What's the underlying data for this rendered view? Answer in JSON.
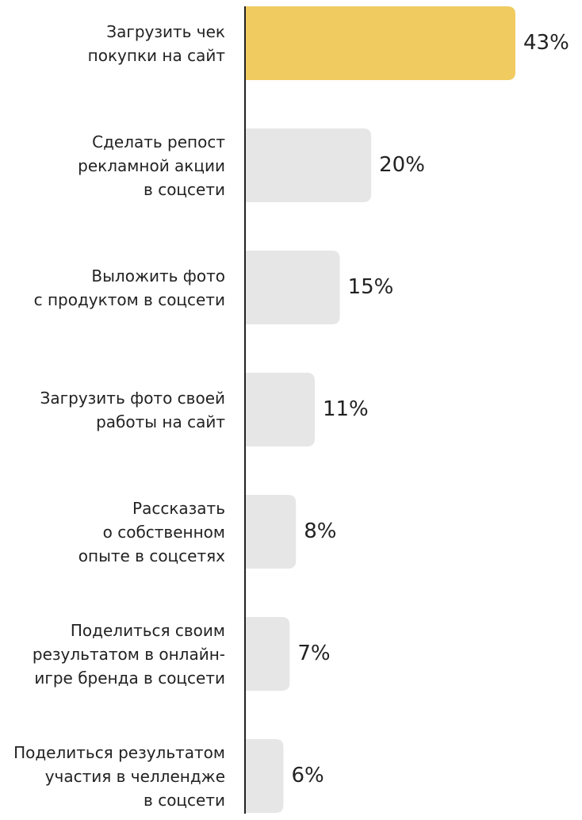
{
  "chart_data": {
    "type": "bar",
    "orientation": "horizontal",
    "categories": [
      "Загрузить чек\nпокупки на сайт",
      "Сделать репост\nрекламной акции\nв соцсети",
      "Выложить фото\nс продуктом в соцсети",
      "Загрузить фото своей\nработы на сайт",
      "Рассказать\nо собственном\nопыте в соцсетях",
      "Поделиться своим\nрезультатом в онлайн-\nигре бренда в соцсети",
      "Поделиться результатом\nучастия в челлендже\nв соцсети"
    ],
    "values": [
      43,
      20,
      15,
      11,
      8,
      7,
      6
    ],
    "value_labels": [
      "43%",
      "20%",
      "15%",
      "11%",
      "8%",
      "7%",
      "6%"
    ],
    "colors": [
      "#f0cb5f",
      "#e6e6e6",
      "#e6e6e6",
      "#e6e6e6",
      "#e6e6e6",
      "#e6e6e6",
      "#e6e6e6"
    ]
  }
}
